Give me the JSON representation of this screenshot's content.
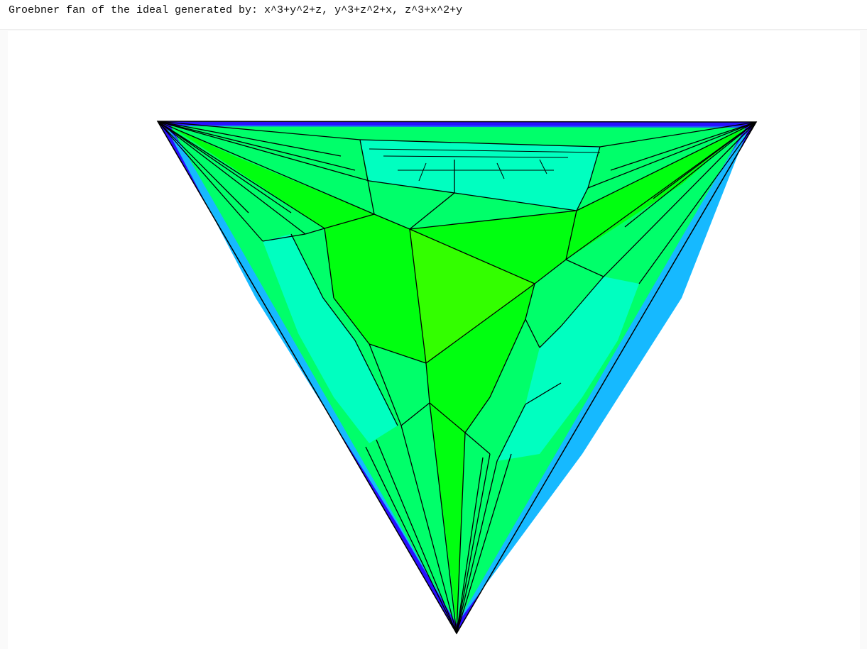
{
  "page": {
    "title": "Groebner fan of the ideal generated by: x^3+y^2+z, y^3+z^2+x, z^3+x^2+y"
  },
  "colors": {
    "background": "#fafafa",
    "canvas": "#ffffff",
    "outer_border": "#2a0fff",
    "deep_blue": "#1a2aff",
    "mid_blue": "#1aa8ff",
    "cyan": "#00ffc0",
    "aqua": "#00ffa0",
    "spring_green": "#00ff6a",
    "green": "#00ff10",
    "chartreuse": "#33ff00",
    "edge": "#000000"
  }
}
